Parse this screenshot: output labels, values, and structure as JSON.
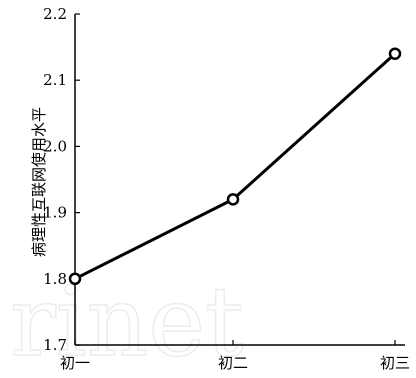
{
  "chart_data": {
    "type": "line",
    "categories": [
      "初一",
      "初二",
      "初三"
    ],
    "series": [
      {
        "values": [
          1.8,
          1.92,
          2.14
        ]
      }
    ],
    "ylabel": "病理性互联网使用水平",
    "ylim": [
      1.7,
      2.2
    ],
    "yticks": [
      "1.7",
      "1.8",
      "1.9",
      "2.0",
      "2.1",
      "2.2"
    ],
    "grid": false,
    "line_color": "#000000",
    "marker": "circle-open"
  }
}
